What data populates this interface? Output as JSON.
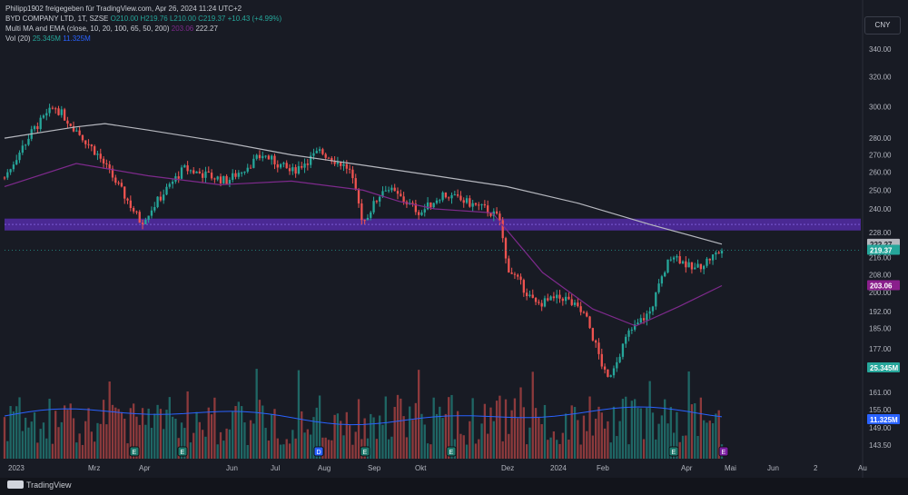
{
  "header": {
    "published_by": "Philipp1902 freigegeben für TradingView.com, Apr 26, 2024 11:24 UTC+2"
  },
  "legend": {
    "symbol": "BYD COMPANY LTD, 1T, SZSE",
    "ohlc": "O210.00 H219.76 L210.00 C219.37 +10.43 (+4.99%)",
    "ma_indicator": "Multi MA and EMA (close, 10, 20, 100, 65, 50, 200)",
    "ma_value_1": "203.06",
    "ma_value_2": "222.27",
    "vol_label": "Vol (20)",
    "vol_value": "25.345M",
    "vol_ma_value": "11.325M"
  },
  "currency_button": "CNY",
  "footer": {
    "brand": "TradingView"
  },
  "colors": {
    "up": "#26a69a",
    "down": "#ef5350",
    "ma_purple": "#7e2a8c",
    "ma_white": "#b6b8bf",
    "zone": "#5b2fb8",
    "vol_ma": "#2962ff",
    "background": "#181b24"
  },
  "chart_data": {
    "type": "candlestick",
    "title": "BYD COMPANY LTD, 1T, SZSE",
    "y_axis_ticks": [
      "340.00",
      "320.00",
      "300.00",
      "280.00",
      "270.00",
      "260.00",
      "250.00",
      "240.00",
      "228.00",
      "216.00",
      "208.00",
      "200.00",
      "192.00",
      "185.00",
      "177.00",
      "161.00",
      "155.00",
      "149.00",
      "143.50"
    ],
    "y_scale": "log",
    "ylim": [
      140,
      350
    ],
    "x_axis_ticks": [
      "2023",
      "Mrz",
      "Apr",
      "Jun",
      "Jul",
      "Aug",
      "Sep",
      "Okt",
      "Dez",
      "2024",
      "Feb",
      "Apr",
      "Mai",
      "Jun",
      "2",
      "Au"
    ],
    "price_labels": [
      {
        "text": "222.27",
        "kind": "ma_white",
        "value": 222.27
      },
      {
        "text": "219.37",
        "kind": "last",
        "value": 219.37
      },
      {
        "text": "203.06",
        "kind": "ma_purple",
        "value": 203.06
      },
      {
        "text": "25.345M",
        "kind": "volume"
      },
      {
        "text": "11.325M",
        "kind": "volume_ma"
      }
    ],
    "resistance_zone": {
      "low": 229,
      "high": 235
    },
    "moving_average_200": [
      [
        0,
        280
      ],
      [
        0.1,
        287
      ],
      [
        0.14,
        289
      ],
      [
        0.2,
        285
      ],
      [
        0.3,
        278
      ],
      [
        0.4,
        270
      ],
      [
        0.5,
        264
      ],
      [
        0.6,
        258
      ],
      [
        0.7,
        252
      ],
      [
        0.8,
        243
      ],
      [
        0.9,
        232
      ],
      [
        1,
        222.27
      ]
    ],
    "moving_average_50": [
      [
        0,
        252
      ],
      [
        0.1,
        265
      ],
      [
        0.2,
        258
      ],
      [
        0.3,
        253
      ],
      [
        0.4,
        255
      ],
      [
        0.5,
        250
      ],
      [
        0.55,
        244
      ],
      [
        0.6,
        240
      ],
      [
        0.68,
        238
      ],
      [
        0.75,
        209
      ],
      [
        0.82,
        193
      ],
      [
        0.88,
        186
      ],
      [
        0.94,
        194
      ],
      [
        1,
        203.06
      ]
    ],
    "price_path": [
      [
        0,
        257
      ],
      [
        0.04,
        285
      ],
      [
        0.07,
        300
      ],
      [
        0.13,
        270
      ],
      [
        0.19,
        233
      ],
      [
        0.25,
        262
      ],
      [
        0.31,
        255
      ],
      [
        0.36,
        270
      ],
      [
        0.4,
        260
      ],
      [
        0.44,
        272
      ],
      [
        0.48,
        262
      ],
      [
        0.5,
        233
      ],
      [
        0.53,
        252
      ],
      [
        0.58,
        238
      ],
      [
        0.61,
        248
      ],
      [
        0.67,
        240
      ],
      [
        0.69,
        235
      ],
      [
        0.7,
        212
      ],
      [
        0.74,
        195
      ],
      [
        0.78,
        198
      ],
      [
        0.81,
        190
      ],
      [
        0.84,
        165
      ],
      [
        0.87,
        183
      ],
      [
        0.9,
        192
      ],
      [
        0.93,
        218
      ],
      [
        0.96,
        210
      ],
      [
        1,
        219.37
      ]
    ],
    "volume": {
      "last": "25.345M",
      "ma20": "11.325M"
    },
    "event_markers": [
      "E",
      "E",
      "D",
      "E",
      "E",
      "E",
      "E"
    ]
  }
}
